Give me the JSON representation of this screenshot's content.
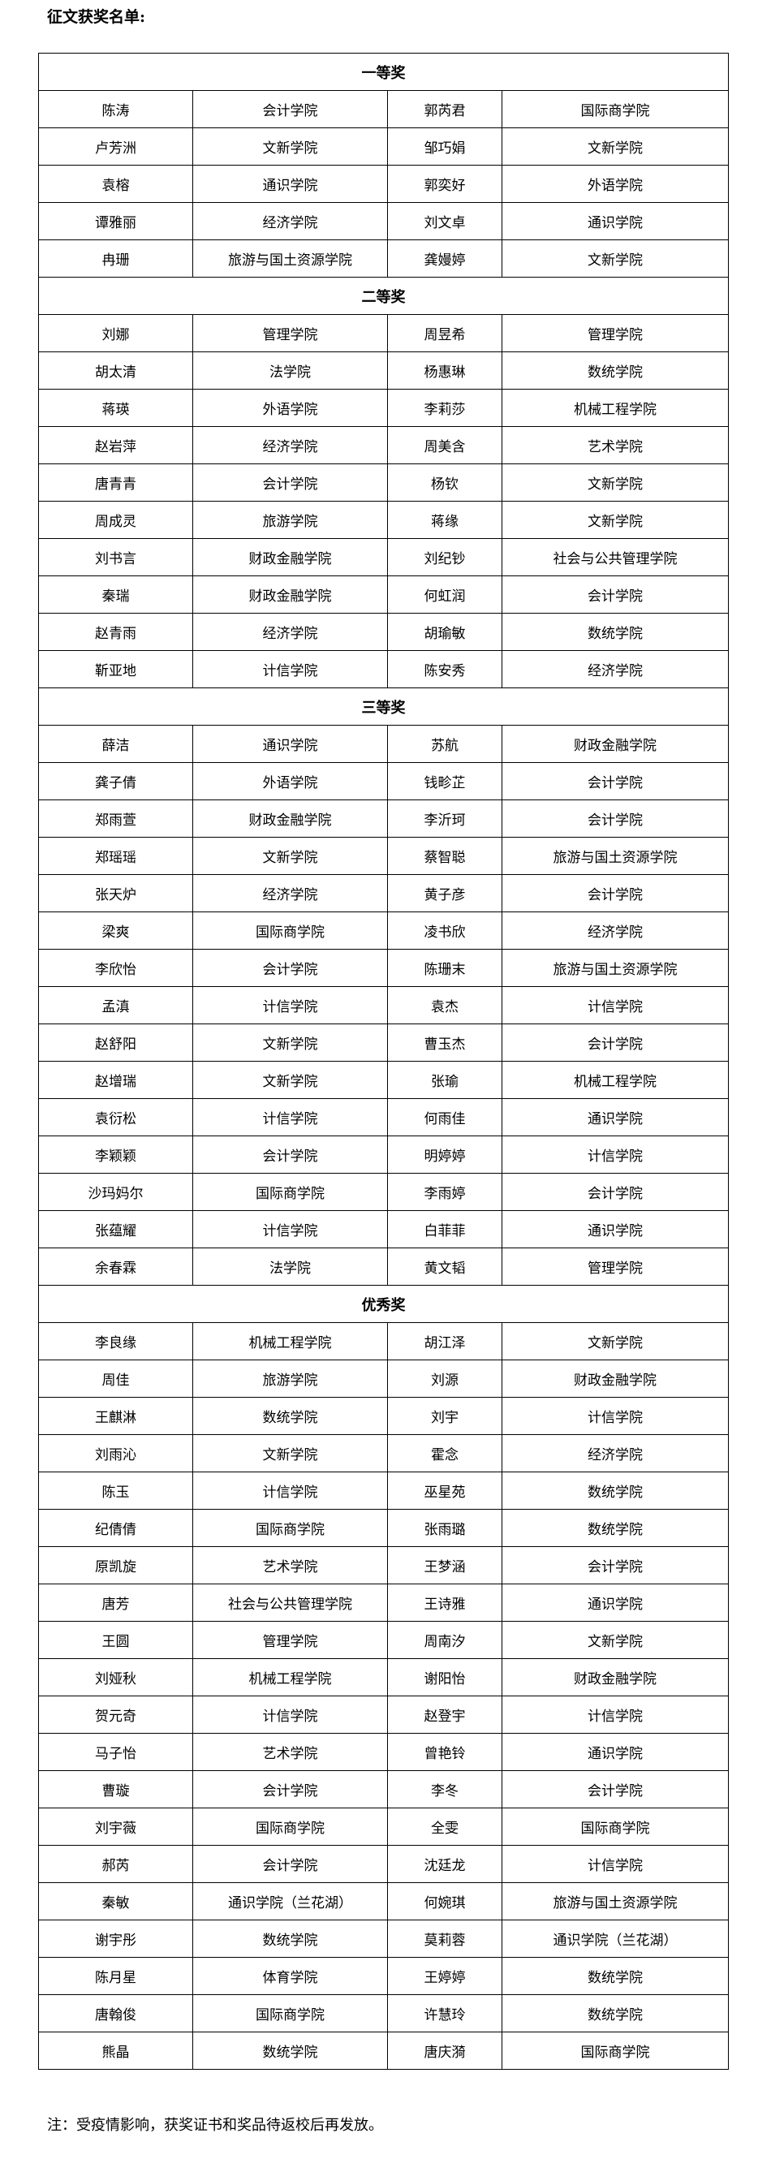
{
  "header": {
    "title": "征文获奖名单:"
  },
  "sections": [
    {
      "title": "一等奖",
      "rows": [
        [
          "陈涛",
          "会计学院",
          "郭芮君",
          "国际商学院"
        ],
        [
          "卢芳洲",
          "文新学院",
          "邹巧娟",
          "文新学院"
        ],
        [
          "袁榕",
          "通识学院",
          "郭奕好",
          "外语学院"
        ],
        [
          "谭雅丽",
          "经济学院",
          "刘文卓",
          "通识学院"
        ],
        [
          "冉珊",
          "旅游与国土资源学院",
          "龚嫚婷",
          "文新学院"
        ]
      ]
    },
    {
      "title": "二等奖",
      "rows": [
        [
          "刘娜",
          "管理学院",
          "周昱希",
          "管理学院"
        ],
        [
          "胡太清",
          "法学院",
          "杨惠琳",
          "数统学院"
        ],
        [
          "蒋瑛",
          "外语学院",
          "李莉莎",
          "机械工程学院"
        ],
        [
          "赵岩萍",
          "经济学院",
          "周美含",
          "艺术学院"
        ],
        [
          "唐青青",
          "会计学院",
          "杨钦",
          "文新学院"
        ],
        [
          "周成灵",
          "旅游学院",
          "蒋缘",
          "文新学院"
        ],
        [
          "刘书言",
          "财政金融学院",
          "刘纪钞",
          "社会与公共管理学院"
        ],
        [
          "秦瑞",
          "财政金融学院",
          "何虹润",
          "会计学院"
        ],
        [
          "赵青雨",
          "经济学院",
          "胡瑜敏",
          "数统学院"
        ],
        [
          "靳亚地",
          "计信学院",
          "陈安秀",
          "经济学院"
        ]
      ]
    },
    {
      "title": "三等奖",
      "rows": [
        [
          "薛洁",
          "通识学院",
          "苏航",
          "财政金融学院"
        ],
        [
          "龚子倩",
          "外语学院",
          "钱畛芷",
          "会计学院"
        ],
        [
          "郑雨萱",
          "财政金融学院",
          "李沂珂",
          "会计学院"
        ],
        [
          "郑瑶瑶",
          "文新学院",
          "蔡智聪",
          "旅游与国土资源学院"
        ],
        [
          "张天炉",
          "经济学院",
          "黄子彦",
          "会计学院"
        ],
        [
          "梁爽",
          "国际商学院",
          "凌书欣",
          "经济学院"
        ],
        [
          "李欣怡",
          "会计学院",
          "陈珊末",
          "旅游与国土资源学院"
        ],
        [
          "孟滇",
          "计信学院",
          "袁杰",
          "计信学院"
        ],
        [
          "赵舒阳",
          "文新学院",
          "曹玉杰",
          "会计学院"
        ],
        [
          "赵增瑞",
          "文新学院",
          "张瑜",
          "机械工程学院"
        ],
        [
          "袁衍松",
          "计信学院",
          "何雨佳",
          "通识学院"
        ],
        [
          "李颖颖",
          "会计学院",
          "明婷婷",
          "计信学院"
        ],
        [
          "沙玛妈尔",
          "国际商学院",
          "李雨婷",
          "会计学院"
        ],
        [
          "张蕴耀",
          "计信学院",
          "白菲菲",
          "通识学院"
        ],
        [
          "余春霖",
          "法学院",
          "黄文韬",
          "管理学院"
        ]
      ]
    },
    {
      "title": "优秀奖",
      "rows": [
        [
          "李良缘",
          "机械工程学院",
          "胡江泽",
          "文新学院"
        ],
        [
          "周佳",
          "旅游学院",
          "刘源",
          "财政金融学院"
        ],
        [
          "王麒淋",
          "数统学院",
          "刘宇",
          "计信学院"
        ],
        [
          "刘雨沁",
          "文新学院",
          "霍念",
          "经济学院"
        ],
        [
          "陈玉",
          "计信学院",
          "巫星苑",
          "数统学院"
        ],
        [
          "纪倩倩",
          "国际商学院",
          "张雨璐",
          "数统学院"
        ],
        [
          "原凯旋",
          "艺术学院",
          "王梦涵",
          "会计学院"
        ],
        [
          "唐芳",
          "社会与公共管理学院",
          "王诗雅",
          "通识学院"
        ],
        [
          "王圆",
          "管理学院",
          "周南汐",
          "文新学院"
        ],
        [
          "刘娅秋",
          "机械工程学院",
          "谢阳怡",
          "财政金融学院"
        ],
        [
          "贺元奇",
          "计信学院",
          "赵登宇",
          "计信学院"
        ],
        [
          "马子怡",
          "艺术学院",
          "曾艳铃",
          "通识学院"
        ],
        [
          "曹璇",
          "会计学院",
          "李冬",
          "会计学院"
        ],
        [
          "刘宇薇",
          "国际商学院",
          "全雯",
          "国际商学院"
        ],
        [
          "郝芮",
          "会计学院",
          "沈廷龙",
          "计信学院"
        ],
        [
          "秦敏",
          "通识学院（兰花湖）",
          "何婉琪",
          "旅游与国土资源学院"
        ],
        [
          "谢宇彤",
          "数统学院",
          "莫莉蓉",
          "通识学院（兰花湖）"
        ],
        [
          "陈月星",
          "体育学院",
          "王婷婷",
          "数统学院"
        ],
        [
          "唐翰俊",
          "国际商学院",
          "许慧玲",
          "数统学院"
        ],
        [
          "熊晶",
          "数统学院",
          "唐庆漪",
          "国际商学院"
        ]
      ]
    }
  ],
  "note": "注：受疫情影响，获奖证书和奖品待返校后再发放。"
}
